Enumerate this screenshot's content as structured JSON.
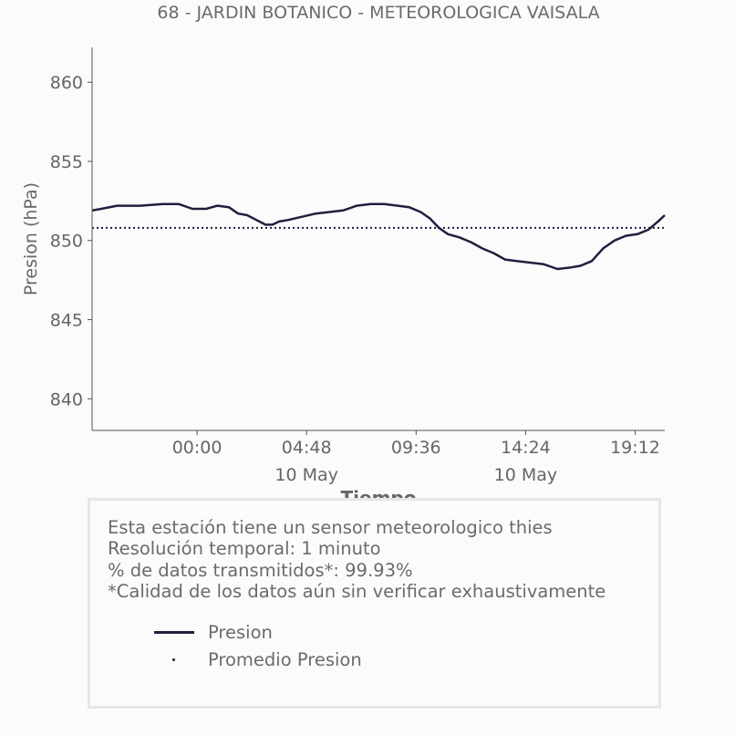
{
  "chart_data": {
    "type": "line",
    "title": "68 - JARDIN BOTANICO - METEOROLOGICA VAISALA",
    "xlabel": "Tiempo",
    "ylabel": "Presion (hPa)",
    "ylim": [
      838.0,
      862.2
    ],
    "yticks": [
      840,
      845,
      850,
      855,
      860
    ],
    "x_unit": "hours since 00:00 10 May",
    "xlim": [
      -4.6,
      20.5
    ],
    "xticks": [
      {
        "hour": 0.0,
        "label": "00:00",
        "sublabel": ""
      },
      {
        "hour": 4.8,
        "label": "04:48",
        "sublabel": "10 May"
      },
      {
        "hour": 9.6,
        "label": "09:36",
        "sublabel": ""
      },
      {
        "hour": 14.4,
        "label": "14:24",
        "sublabel": "10 May"
      },
      {
        "hour": 19.2,
        "label": "19:12",
        "sublabel": ""
      }
    ],
    "grid": false,
    "series": [
      {
        "name": "Presion",
        "color": "#1f1f3d",
        "style": "solid",
        "x": [
          -4.6,
          -4.2,
          -3.5,
          -2.5,
          -1.5,
          -0.8,
          -0.2,
          0.4,
          0.9,
          1.4,
          1.8,
          2.2,
          2.6,
          3.0,
          3.3,
          3.6,
          4.0,
          4.6,
          5.2,
          5.8,
          6.4,
          7.0,
          7.6,
          8.2,
          8.8,
          9.3,
          9.8,
          10.2,
          10.6,
          11.0,
          11.5,
          12.0,
          12.5,
          13.0,
          13.5,
          14.0,
          14.6,
          15.2,
          15.8,
          16.4,
          16.8,
          17.3,
          17.8,
          18.3,
          18.8,
          19.3,
          19.8,
          20.2,
          20.5
        ],
        "values": [
          851.9,
          852.0,
          852.2,
          852.2,
          852.3,
          852.3,
          852.0,
          852.0,
          852.2,
          852.1,
          851.7,
          851.6,
          851.3,
          851.0,
          851.0,
          851.2,
          851.3,
          851.5,
          851.7,
          851.8,
          851.9,
          852.2,
          852.3,
          852.3,
          852.2,
          852.1,
          851.8,
          851.4,
          850.8,
          850.4,
          850.2,
          849.9,
          849.5,
          849.2,
          848.8,
          848.7,
          848.6,
          848.5,
          848.2,
          848.3,
          848.4,
          848.7,
          849.5,
          850.0,
          850.3,
          850.4,
          850.7,
          851.2,
          851.6
        ]
      },
      {
        "name": "Promedio Presion",
        "color": "#1f1f3d",
        "style": "dotted",
        "x": [
          -4.6,
          20.5
        ],
        "values": [
          850.8,
          850.8
        ]
      }
    ]
  },
  "info": {
    "lines": [
      "Esta estación tiene un sensor meteorologico thies",
      "Resolución temporal: 1 minuto",
      "% de datos transmitidos*: 99.93%",
      "*Calidad de los datos aún sin verificar exhaustivamente"
    ]
  },
  "legend": {
    "items": [
      "Presion",
      "Promedio Presion"
    ]
  }
}
